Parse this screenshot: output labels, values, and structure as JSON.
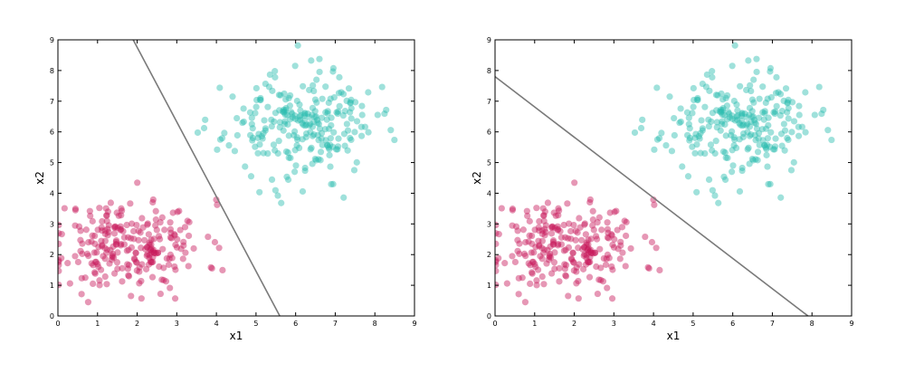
{
  "chart_data": [
    {
      "type": "scatter",
      "xlabel": "x1",
      "ylabel": "x2",
      "xlim": [
        0,
        9
      ],
      "ylim": [
        0,
        9
      ],
      "xticks": [
        "0",
        "1",
        "2",
        "3",
        "4",
        "5",
        "6",
        "7",
        "8",
        "9"
      ],
      "yticks": [
        "0",
        "1",
        "2",
        "3",
        "4",
        "5",
        "6",
        "7",
        "8",
        "9"
      ],
      "grid": false,
      "boundary_line": {
        "x": [
          1.9,
          5.6
        ],
        "y": [
          9,
          0
        ],
        "color": "#7a7a7a"
      },
      "series": [
        {
          "color": "#c8195a",
          "center": [
            1.8,
            2.3
          ],
          "spread": [
            0.95,
            0.75
          ],
          "count": 250,
          "seed": 11
        },
        {
          "color": "#2bbcb0",
          "center": [
            6.1,
            6.2
          ],
          "spread": [
            0.95,
            0.85
          ],
          "count": 250,
          "seed": 23
        }
      ]
    },
    {
      "type": "scatter",
      "xlabel": "x1",
      "ylabel": "x2",
      "xlim": [
        0,
        9
      ],
      "ylim": [
        0,
        9
      ],
      "xticks": [
        "0",
        "1",
        "2",
        "3",
        "4",
        "5",
        "6",
        "7",
        "8",
        "9"
      ],
      "yticks": [
        "0",
        "1",
        "2",
        "3",
        "4",
        "5",
        "6",
        "7",
        "8",
        "9"
      ],
      "grid": false,
      "boundary_line": {
        "x": [
          0,
          7.9
        ],
        "y": [
          7.8,
          0
        ],
        "color": "#7a7a7a"
      },
      "series": [
        {
          "color": "#c8195a",
          "center": [
            1.8,
            2.3
          ],
          "spread": [
            0.95,
            0.75
          ],
          "count": 250,
          "seed": 11
        },
        {
          "color": "#2bbcb0",
          "center": [
            6.1,
            6.2
          ],
          "spread": [
            0.95,
            0.85
          ],
          "count": 250,
          "seed": 23
        }
      ]
    }
  ]
}
